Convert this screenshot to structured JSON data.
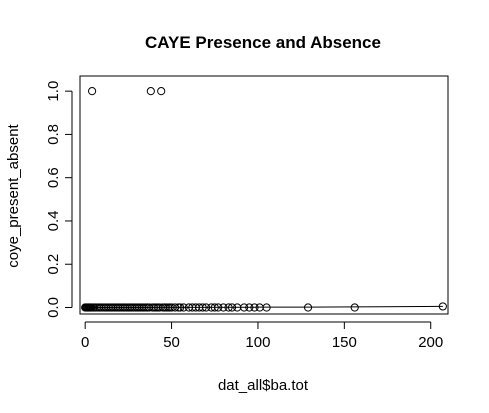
{
  "chart_data": {
    "type": "scatter",
    "title": "CAYE Presence and Absence",
    "xlabel": "dat_all$ba.tot",
    "ylabel": "coye_present_absent",
    "xlim": [
      -3,
      210
    ],
    "ylim": [
      -0.03,
      1.07
    ],
    "x_ticks": [
      0,
      50,
      100,
      150,
      200
    ],
    "y_ticks": [
      0.0,
      0.2,
      0.4,
      0.6,
      0.8,
      1.0
    ],
    "x_tick_labels": [
      "0",
      "50",
      "100",
      "150",
      "200"
    ],
    "y_tick_labels": [
      "0.0",
      "0.2",
      "0.4",
      "0.6",
      "0.8",
      "1.0"
    ],
    "grid": false,
    "legend": "none",
    "series": [
      {
        "kind": "points",
        "points": [
          [
            4,
            1
          ],
          [
            38,
            1
          ],
          [
            44,
            1
          ],
          [
            0,
            0
          ],
          [
            0.5,
            0
          ],
          [
            1,
            0
          ],
          [
            1.5,
            0
          ],
          [
            2,
            0
          ],
          [
            2.5,
            0
          ],
          [
            3,
            0
          ],
          [
            3.5,
            0
          ],
          [
            4.5,
            0
          ],
          [
            5,
            0
          ],
          [
            6,
            0
          ],
          [
            7,
            0
          ],
          [
            8,
            0
          ],
          [
            9,
            0
          ],
          [
            10,
            0
          ],
          [
            11,
            0
          ],
          [
            12,
            0
          ],
          [
            13,
            0
          ],
          [
            14,
            0
          ],
          [
            15,
            0
          ],
          [
            16,
            0
          ],
          [
            17,
            0
          ],
          [
            18,
            0
          ],
          [
            19,
            0
          ],
          [
            20,
            0
          ],
          [
            21,
            0
          ],
          [
            22,
            0
          ],
          [
            23,
            0
          ],
          [
            24,
            0
          ],
          [
            25,
            0
          ],
          [
            26,
            0
          ],
          [
            27,
            0
          ],
          [
            28,
            0
          ],
          [
            29,
            0
          ],
          [
            30,
            0
          ],
          [
            31,
            0
          ],
          [
            32,
            0
          ],
          [
            33,
            0
          ],
          [
            34,
            0
          ],
          [
            35,
            0
          ],
          [
            36,
            0
          ],
          [
            37,
            0
          ],
          [
            39,
            0
          ],
          [
            40,
            0
          ],
          [
            41,
            0
          ],
          [
            42,
            0
          ],
          [
            43,
            0
          ],
          [
            45,
            0
          ],
          [
            46,
            0
          ],
          [
            47,
            0
          ],
          [
            48,
            0
          ],
          [
            49,
            0
          ],
          [
            50,
            0
          ],
          [
            52,
            0
          ],
          [
            54,
            0
          ],
          [
            55,
            0
          ],
          [
            57,
            0
          ],
          [
            60,
            0
          ],
          [
            62,
            0
          ],
          [
            64,
            0
          ],
          [
            66,
            0
          ],
          [
            68,
            0
          ],
          [
            70,
            0
          ],
          [
            73,
            0
          ],
          [
            75,
            0
          ],
          [
            77,
            0
          ],
          [
            80,
            0
          ],
          [
            83,
            0
          ],
          [
            85,
            0
          ],
          [
            88,
            0
          ],
          [
            92,
            0
          ],
          [
            95,
            0
          ],
          [
            98,
            0
          ],
          [
            101,
            0
          ],
          [
            105,
            0
          ],
          [
            129,
            0
          ],
          [
            156,
            0
          ],
          [
            207,
            0.005
          ]
        ]
      },
      {
        "kind": "line",
        "points": [
          [
            0,
            0.0
          ],
          [
            50,
            0.0005
          ],
          [
            100,
            0.0015
          ],
          [
            129,
            0.002
          ],
          [
            156,
            0.0028
          ],
          [
            207,
            0.005
          ]
        ]
      }
    ]
  }
}
